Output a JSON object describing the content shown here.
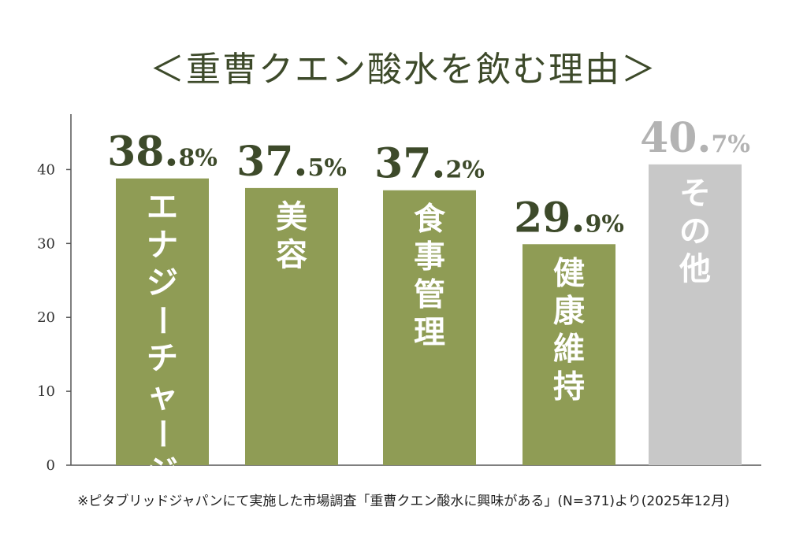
{
  "title": "＜重曹クエン酸水を飲む理由＞",
  "footnote": "※ピタブリッドジャパンにて実施した市場調査「重曹クエン酸水に興味がある」(N=371)より(2025年12月)",
  "colors": {
    "bar": "#8f9c55",
    "bar_other": "#c8c8c8",
    "value_text": "#3d4a2a",
    "value_text_other": "#b3b3b3",
    "axis": "#555555"
  },
  "chart_data": {
    "type": "bar",
    "categories": [
      "エナジーチャージ",
      "美容",
      "食事管理",
      "健康維持",
      "その他"
    ],
    "values": [
      38.8,
      37.5,
      37.2,
      29.9,
      40.7
    ],
    "value_labels": [
      {
        "main": "38.",
        "dec": "8%"
      },
      {
        "main": "37.",
        "dec": "5%"
      },
      {
        "main": "37.",
        "dec": "2%"
      },
      {
        "main": "29.",
        "dec": "9%"
      },
      {
        "main": "40.",
        "dec": "7%"
      }
    ],
    "y_ticks": [
      0,
      10,
      20,
      30,
      40
    ],
    "ylim": [
      0,
      47.5
    ],
    "grid": false,
    "title": "＜重曹クエン酸水を飲む理由＞",
    "xlabel": "",
    "ylabel": ""
  }
}
